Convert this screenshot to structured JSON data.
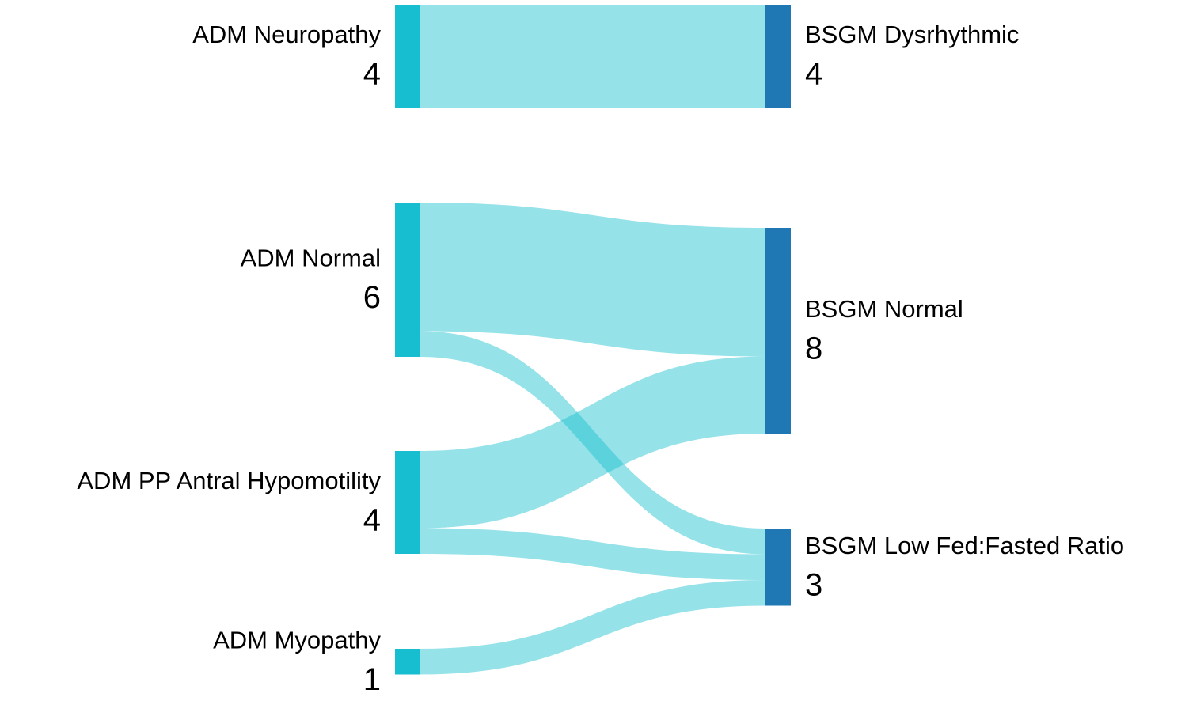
{
  "chart_data": {
    "type": "sankey",
    "nodes": [
      {
        "name": "ADM Neuropathy",
        "value": 4,
        "color": "#17becf"
      },
      {
        "name": "ADM Normal",
        "value": 6,
        "color": "#17becf"
      },
      {
        "name": "ADM PP Antral Hypomotility",
        "value": 4,
        "color": "#17becf"
      },
      {
        "name": "ADM Myopathy",
        "value": 1,
        "color": "#17becf"
      },
      {
        "name": "BSGM Dysrhythmic",
        "value": 4,
        "color": "#1f77b4"
      },
      {
        "name": "BSGM Normal",
        "value": 8,
        "color": "#1f77b4"
      },
      {
        "name": "BSGM Low Fed:Fasted Ratio",
        "value": 3,
        "color": "#1f77b4"
      }
    ],
    "links": [
      {
        "source": 0,
        "target": 4,
        "value": 4
      },
      {
        "source": 1,
        "target": 5,
        "value": 5
      },
      {
        "source": 1,
        "target": 6,
        "value": 1
      },
      {
        "source": 2,
        "target": 5,
        "value": 3
      },
      {
        "source": 2,
        "target": 6,
        "value": 1
      },
      {
        "source": 3,
        "target": 6,
        "value": 1
      }
    ],
    "link_color": "#17becf"
  }
}
